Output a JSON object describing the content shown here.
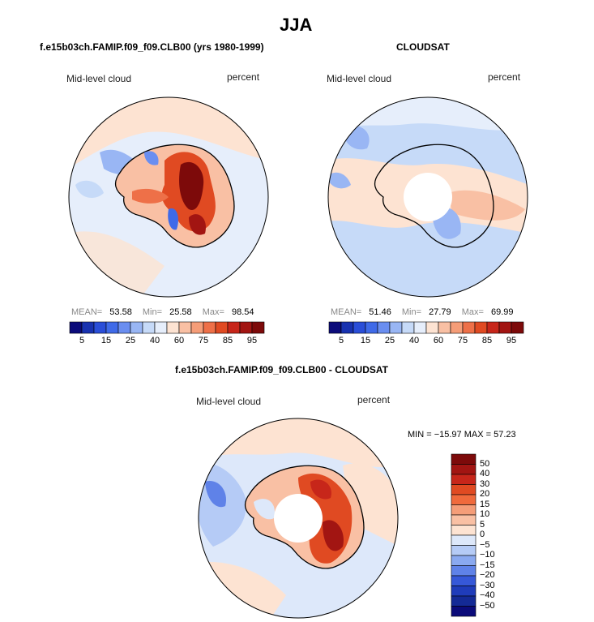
{
  "title": "JJA",
  "panels": [
    {
      "title": "f.e15b03ch.FAMIP.f09_f09.CLB00 (yrs 1980-1999)",
      "left_label": "Mid-level cloud",
      "right_label": "percent",
      "stats": {
        "mean_label": "MEAN=",
        "mean": "53.58",
        "min_label": "Min=",
        "min": "25.58",
        "max_label": "Max=",
        "max": "98.54"
      }
    },
    {
      "title": "CLOUDSAT",
      "left_label": "Mid-level cloud",
      "right_label": "percent",
      "stats": {
        "mean_label": "MEAN=",
        "mean": "51.46",
        "min_label": "Min=",
        "min": "27.79",
        "max_label": "Max=",
        "max": "69.99"
      }
    },
    {
      "title": "f.e15b03ch.FAMIP.f09_f09.CLB00 - CLOUDSAT",
      "left_label": "Mid-level cloud",
      "right_label": "percent",
      "minmax": "MIN = −15.97 MAX =  57.23"
    }
  ],
  "colorbar_h": {
    "ticks": [
      "5",
      "15",
      "25",
      "40",
      "60",
      "75",
      "85",
      "95"
    ],
    "colors": [
      "#0b0b7a",
      "#1832b0",
      "#2a4ed8",
      "#3f6ae8",
      "#6a8ef0",
      "#99b6f4",
      "#c6daf8",
      "#e6eefb",
      "#fde3d2",
      "#f9c0a4",
      "#f59d78",
      "#ee7048",
      "#e04a22",
      "#c7261a",
      "#a21512",
      "#7d0a0a"
    ]
  },
  "colorbar_v": {
    "ticks": [
      "50",
      "40",
      "30",
      "20",
      "15",
      "10",
      "5",
      "0",
      "−5",
      "−10",
      "−15",
      "−20",
      "−30",
      "−40",
      "−50"
    ],
    "colors": [
      "#7d0a0a",
      "#a21512",
      "#c7261a",
      "#e04a22",
      "#f06a3c",
      "#f59d78",
      "#f9c0a4",
      "#fde3d2",
      "#dde8fa",
      "#b5cbf6",
      "#8aa9f0",
      "#5f82e8",
      "#3658d8",
      "#1f3cba",
      "#142a96",
      "#0b0b7a"
    ]
  },
  "chart_data": [
    {
      "type": "heatmap",
      "title": "f.e15b03ch.FAMIP.f09_f09.CLB00 (yrs 1980-1999)",
      "variable": "Mid-level cloud",
      "units": "percent",
      "projection": "south polar stereographic",
      "mean": 53.58,
      "min": 25.58,
      "max": 98.54,
      "levels": [
        5,
        10,
        15,
        20,
        25,
        30,
        40,
        50,
        60,
        65,
        75,
        80,
        85,
        90,
        95
      ]
    },
    {
      "type": "heatmap",
      "title": "CLOUDSAT",
      "variable": "Mid-level cloud",
      "units": "percent",
      "projection": "south polar stereographic",
      "mean": 51.46,
      "min": 27.79,
      "max": 69.99,
      "levels": [
        5,
        10,
        15,
        20,
        25,
        30,
        40,
        50,
        60,
        65,
        75,
        80,
        85,
        90,
        95
      ]
    },
    {
      "type": "heatmap",
      "title": "f.e15b03ch.FAMIP.f09_f09.CLB00 - CLOUDSAT",
      "variable": "Mid-level cloud",
      "units": "percent",
      "projection": "south polar stereographic",
      "min": -15.97,
      "max": 57.23,
      "levels": [
        -50,
        -40,
        -30,
        -20,
        -15,
        -10,
        -5,
        0,
        5,
        10,
        15,
        20,
        30,
        40,
        50
      ]
    }
  ]
}
